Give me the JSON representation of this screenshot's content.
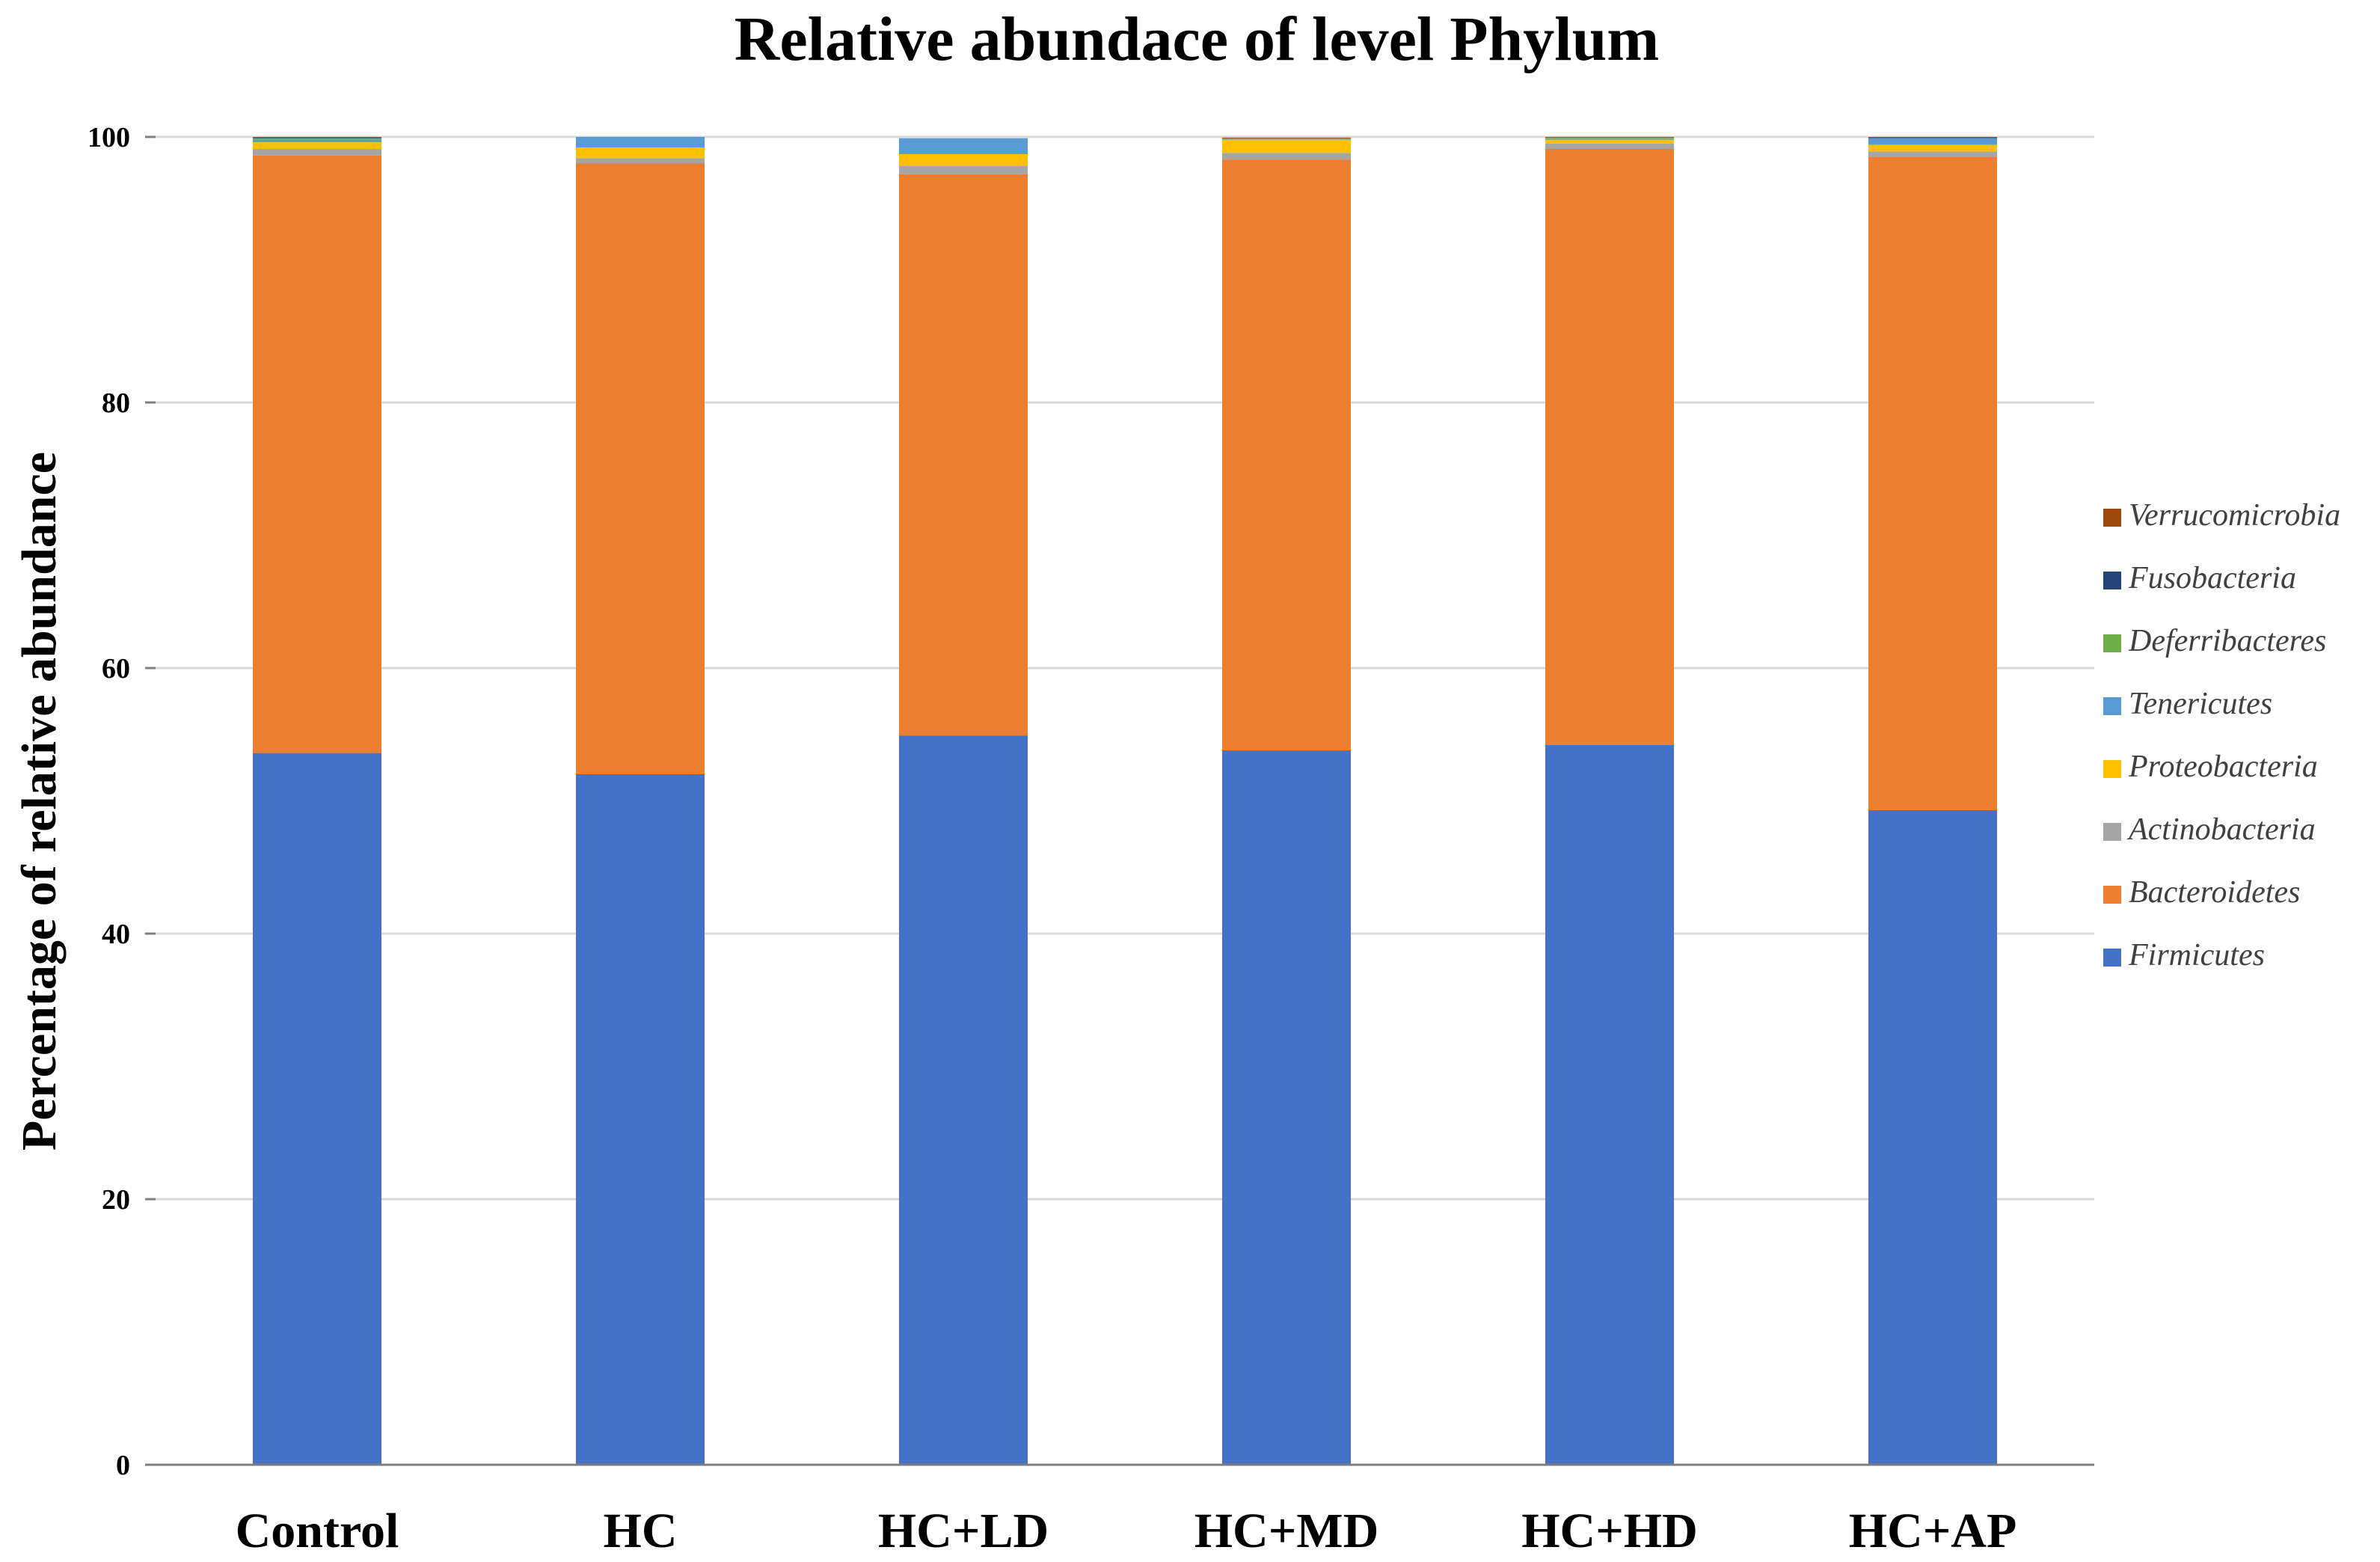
{
  "chart_data": {
    "type": "bar",
    "stacked": true,
    "title": "Relative abundace of level Phylum",
    "xlabel": "",
    "ylabel": "Percentage of relative abundance",
    "ylim": [
      0,
      100
    ],
    "yticks": [
      0,
      20,
      40,
      60,
      80,
      100
    ],
    "grid": true,
    "legend_position": "right",
    "categories": [
      "Control",
      "HC",
      "HC+LD",
      "HC+MD",
      "HC+HD",
      "HC+AP"
    ],
    "series": [
      {
        "name": "Firmicutes",
        "color": "#4472C4",
        "values": [
          53.6,
          52.0,
          54.9,
          53.8,
          54.2,
          49.3
        ]
      },
      {
        "name": "Bacteroidetes",
        "color": "#ED7D31",
        "values": [
          45.0,
          46.0,
          42.3,
          44.5,
          44.9,
          49.2
        ]
      },
      {
        "name": "Actinobacteria",
        "color": "#A5A5A5",
        "values": [
          0.5,
          0.4,
          0.6,
          0.5,
          0.4,
          0.4
        ]
      },
      {
        "name": "Proteobacteria",
        "color": "#FFC000",
        "values": [
          0.5,
          0.8,
          0.9,
          1.0,
          0.3,
          0.5
        ]
      },
      {
        "name": "Tenericutes",
        "color": "#5B9BD5",
        "values": [
          0.2,
          0.8,
          1.2,
          0.1,
          0.1,
          0.5
        ]
      },
      {
        "name": "Deferribacteres",
        "color": "#70AD47",
        "values": [
          0.1,
          0.0,
          0.0,
          0.0,
          0.05,
          0.0
        ]
      },
      {
        "name": "Fusobacteria",
        "color": "#264478",
        "values": [
          0.05,
          0.0,
          0.0,
          0.0,
          0.0,
          0.05
        ]
      },
      {
        "name": "Verrucomicrobia",
        "color": "#9E480E",
        "values": [
          0.05,
          0.0,
          0.0,
          0.05,
          0.05,
          0.05
        ]
      }
    ],
    "legend_order": [
      "Verrucomicrobia",
      "Fusobacteria",
      "Deferribacteres",
      "Tenericutes",
      "Proteobacteria",
      "Actinobacteria",
      "Bacteroidetes",
      "Firmicutes"
    ],
    "colors": {
      "grid": "#d9d9d9",
      "axis": "#7f7f7f"
    }
  }
}
